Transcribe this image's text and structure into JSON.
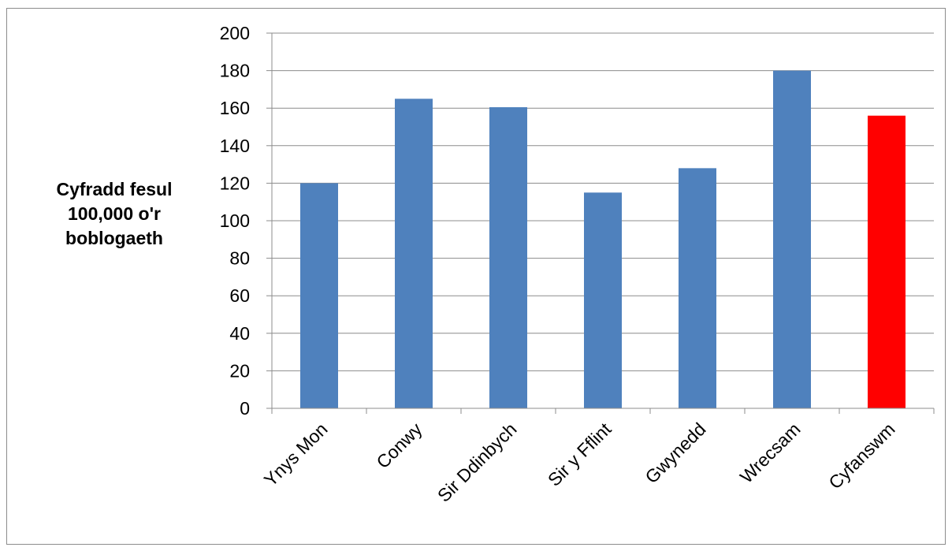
{
  "chart_data": {
    "type": "bar",
    "title": "",
    "xlabel": "",
    "ylabel": [
      "Cyfradd fesul",
      "100,000 o'r",
      "boblogaeth"
    ],
    "categories": [
      "Ynys Mon",
      "Conwy",
      "Sir Ddinbych",
      "Sir y Fflint",
      "Gwynedd",
      "Wrecsam",
      "Cyfanswm"
    ],
    "values": [
      120,
      165,
      160.5,
      115,
      128,
      180,
      156
    ],
    "bar_colors": [
      "#4f81bd",
      "#4f81bd",
      "#4f81bd",
      "#4f81bd",
      "#4f81bd",
      "#4f81bd",
      "#ff0000"
    ],
    "ylim": [
      0,
      200
    ],
    "yticks": [
      0,
      20,
      40,
      60,
      80,
      100,
      120,
      140,
      160,
      180,
      200
    ],
    "grid": true,
    "legend": "none"
  }
}
